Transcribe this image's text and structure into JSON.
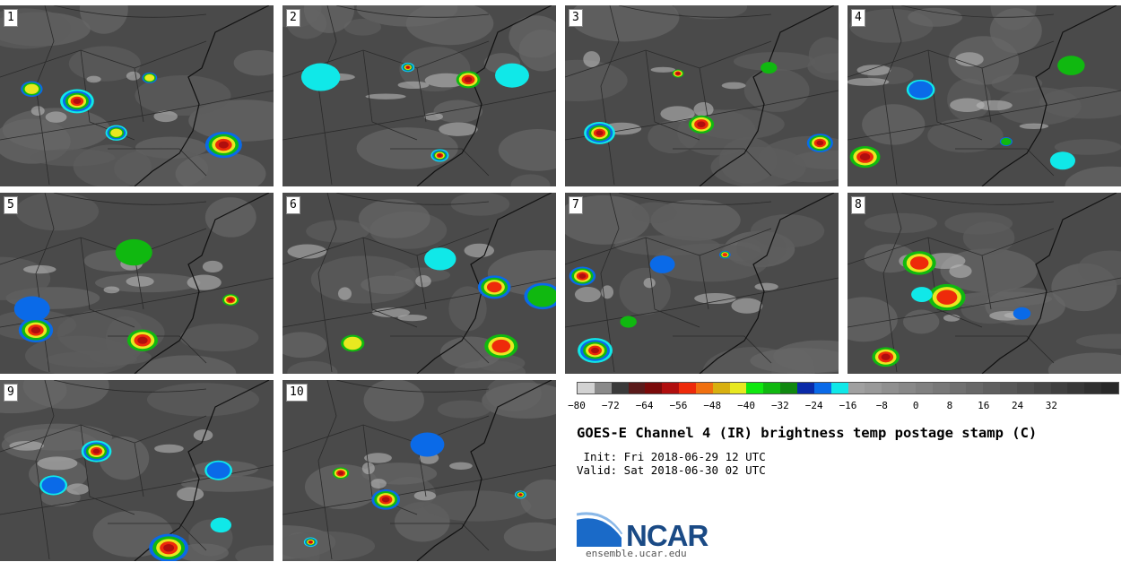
{
  "panels": [
    {
      "label": "1"
    },
    {
      "label": "2"
    },
    {
      "label": "3"
    },
    {
      "label": "4"
    },
    {
      "label": "5"
    },
    {
      "label": "6"
    },
    {
      "label": "7"
    },
    {
      "label": "8"
    },
    {
      "label": "9"
    },
    {
      "label": "10"
    }
  ],
  "colorbar": {
    "colors": [
      "#d2d2d2",
      "#8a8a8a",
      "#3a3a3a",
      "#5a1a1a",
      "#7a0a0a",
      "#b00e0e",
      "#ee2a0a",
      "#f07010",
      "#d8b010",
      "#e8e820",
      "#10e810",
      "#10b810",
      "#108810",
      "#0a2aa8",
      "#0a6ae8",
      "#10e8e8",
      "#a0a0a0",
      "#999999",
      "#909090",
      "#888888",
      "#808080",
      "#787878",
      "#707070",
      "#686868",
      "#606060",
      "#585858",
      "#505050",
      "#484848",
      "#404040",
      "#383838",
      "#303030",
      "#282828"
    ],
    "ticks": [
      "−80",
      "−72",
      "−64",
      "−56",
      "−48",
      "−40",
      "−32",
      "−24",
      "−16",
      "−8",
      "0",
      "8",
      "16",
      "24",
      "32"
    ]
  },
  "title": "GOES-E Channel 4 (IR) brightness temp postage stamp (C)",
  "init": " Init: Fri 2018-06-29 12 UTC",
  "valid": "Valid: Sat 2018-06-30 02 UTC",
  "logo": {
    "text": "NCAR",
    "website": "ensemble.ucar.edu"
  }
}
